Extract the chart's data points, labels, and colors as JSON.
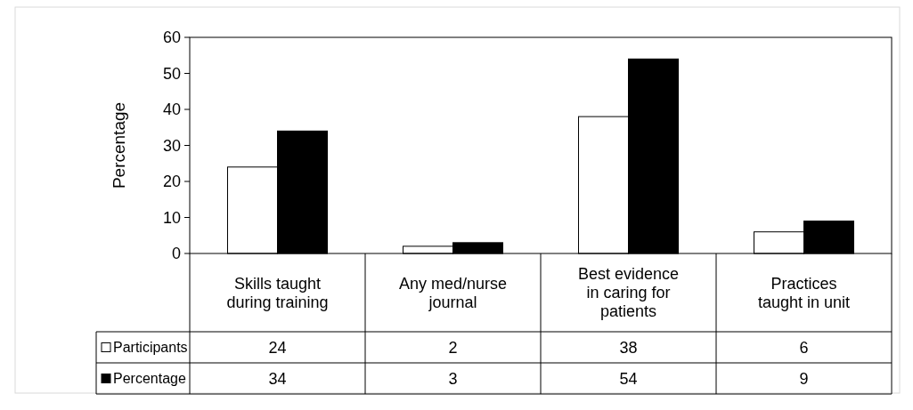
{
  "chart_data": {
    "type": "bar",
    "ylabel": "Percentage",
    "categories": [
      "Skills taught during training",
      "Any med/nurse journal",
      "Best evidence in caring for patients",
      "Practices taught in unit"
    ],
    "series": [
      {
        "name": "Participants",
        "color": "#ffffff",
        "values": [
          24,
          2,
          38,
          6
        ]
      },
      {
        "name": "Percentage",
        "color": "#000000",
        "values": [
          34,
          3,
          54,
          9
        ]
      }
    ],
    "ylim": [
      0,
      60
    ],
    "yticks": [
      0,
      10,
      20,
      30,
      40,
      50,
      60
    ],
    "data_labels": true,
    "legend": "bottom left",
    "grid": false
  }
}
